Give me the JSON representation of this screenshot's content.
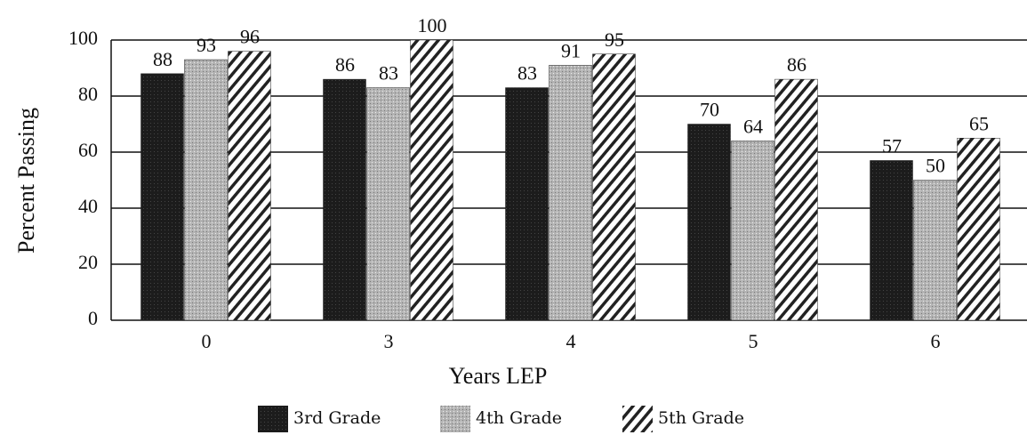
{
  "chart_data": {
    "type": "bar",
    "x_label": "Years LEP",
    "y_label": "Percent Passing",
    "categories": [
      "0",
      "3",
      "4",
      "5",
      "6"
    ],
    "series": [
      {
        "name": "3rd Grade",
        "color": "#1c1c1c",
        "pattern": "solid",
        "values": [
          88,
          86,
          83,
          70,
          57
        ]
      },
      {
        "name": "4th Grade",
        "color": "#b4b4b4",
        "pattern": "stipple",
        "values": [
          93,
          83,
          91,
          64,
          50
        ]
      },
      {
        "name": "5th Grade",
        "color": "#222222",
        "pattern": "hatch",
        "values": [
          96,
          100,
          95,
          86,
          65
        ]
      }
    ],
    "ylim": [
      0,
      100
    ],
    "yticks": [
      0,
      20,
      40,
      60,
      80,
      100
    ],
    "grid": true,
    "data_labels": true
  }
}
